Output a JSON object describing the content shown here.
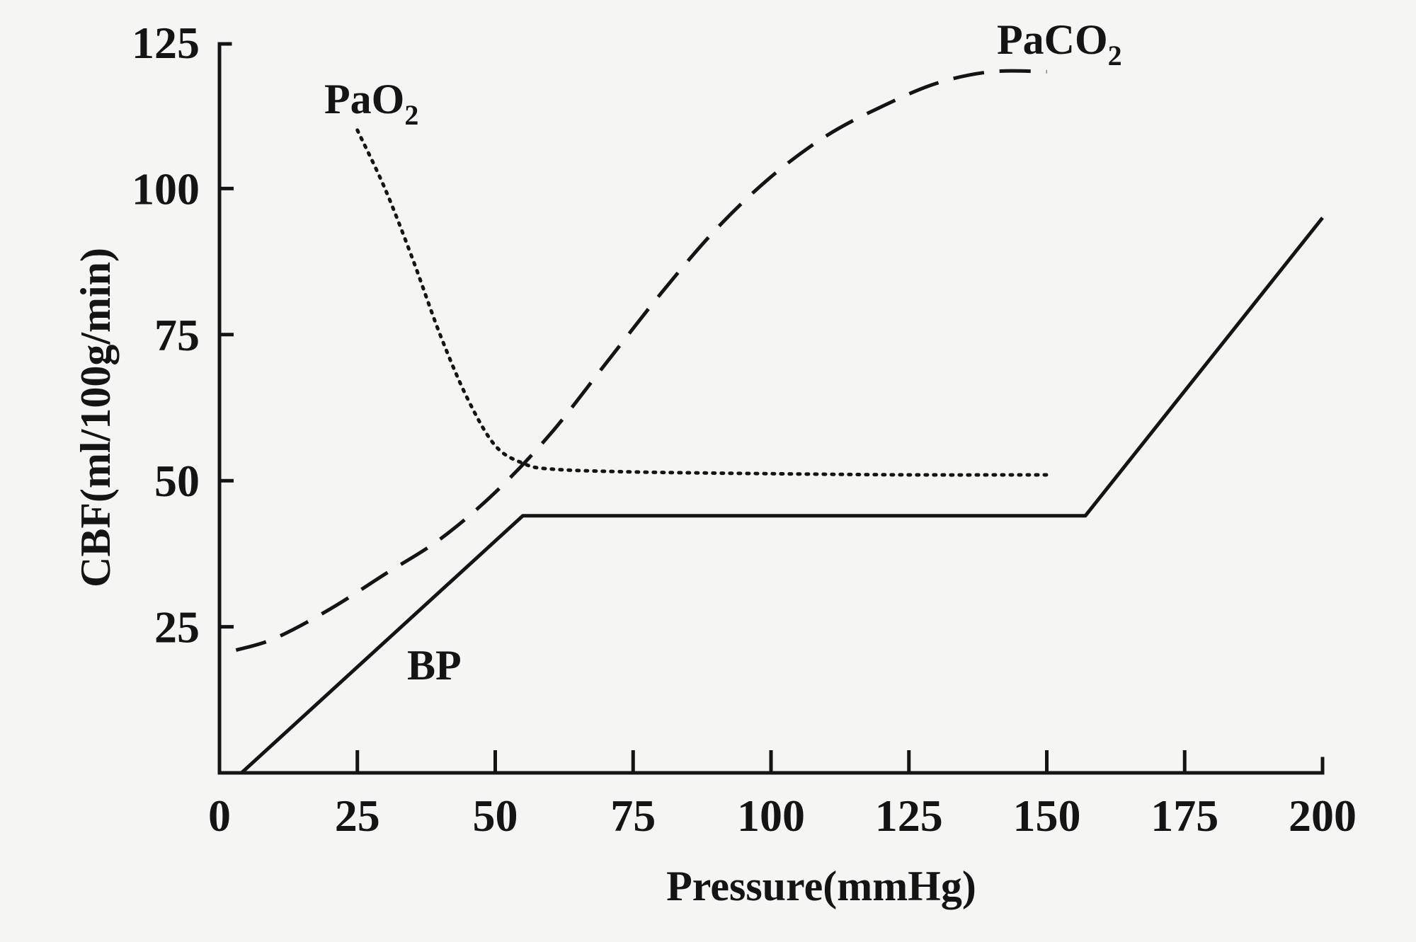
{
  "chart_data": {
    "type": "line",
    "title": "",
    "xlabel": "Pressure(mmHg)",
    "ylabel": "CBF(ml/100g/min)",
    "xlim": [
      0,
      200
    ],
    "ylim": [
      0,
      125
    ],
    "x_ticks": [
      0,
      25,
      50,
      75,
      100,
      125,
      150,
      175,
      200
    ],
    "y_ticks": [
      25,
      50,
      75,
      100,
      125
    ],
    "grid": false,
    "legend": "none",
    "series": [
      {
        "name": "BP",
        "label_sub": "",
        "style": "solid",
        "x": [
          4,
          55,
          157,
          200
        ],
        "y": [
          0,
          44,
          44,
          95
        ]
      },
      {
        "name": "PaO",
        "label_sub": "2",
        "style": "dotted",
        "x": [
          25,
          30,
          35,
          40,
          45,
          50,
          55,
          60,
          75,
          100,
          125,
          150
        ],
        "y": [
          110,
          100,
          88,
          75,
          64,
          56,
          53,
          52,
          51.5,
          51.2,
          51,
          51
        ]
      },
      {
        "name": "PaCO",
        "label_sub": "2",
        "style": "dashed",
        "x": [
          3,
          10,
          20,
          30,
          40,
          50,
          60,
          70,
          80,
          90,
          100,
          110,
          120,
          130,
          140,
          150
        ],
        "y": [
          21,
          23,
          28,
          34,
          40,
          48,
          58,
          70,
          82,
          93,
          102,
          109,
          114,
          118,
          120,
          120
        ]
      }
    ]
  }
}
